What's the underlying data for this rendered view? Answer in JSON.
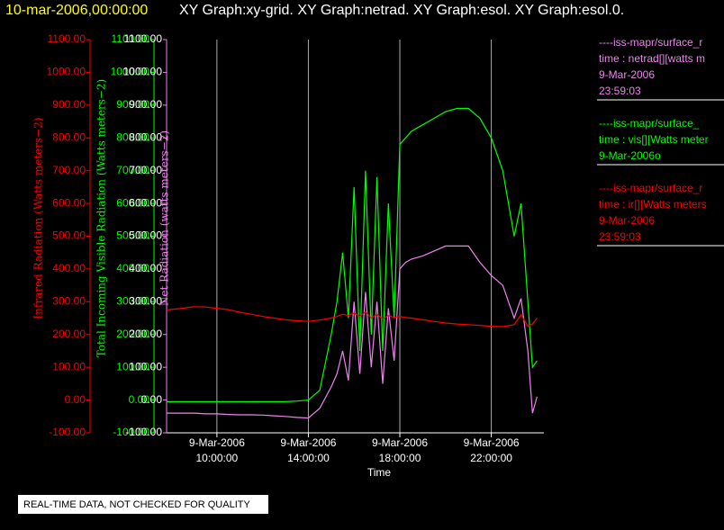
{
  "chart_data": {
    "type": "line",
    "header_time": "10-mar-2006,00:00:00",
    "title": "XY Graph:xy-grid.  XY Graph:netrad.  XY Graph:esol.  XY Graph:esol.0.",
    "xlabel": "Time",
    "footer": "REAL-TIME DATA, NOT CHECKED FOR QUALITY",
    "grid": true,
    "x": [
      7.8,
      8.5,
      9,
      9.5,
      10,
      10.5,
      11,
      11.5,
      12,
      12.5,
      13,
      13.5,
      14,
      14.5,
      15,
      15.25,
      15.5,
      15.75,
      16,
      16.25,
      16.5,
      16.75,
      17,
      17.25,
      17.5,
      17.75,
      18,
      18.25,
      18.5,
      19,
      19.5,
      20,
      20.5,
      21,
      21.5,
      22,
      22.5,
      23,
      23.3,
      23.6,
      23.8,
      24
    ],
    "xlim": [
      7.8,
      24.3
    ],
    "xticks": [
      {
        "value": 10,
        "label": "9-Mar-2006 10:00:00"
      },
      {
        "value": 14,
        "label": "9-Mar-2006 14:00:00"
      },
      {
        "value": 18,
        "label": "9-Mar-2006 18:00:00"
      },
      {
        "value": 22,
        "label": "9-Mar-2006 22:00:00"
      }
    ],
    "ylim": [
      -100,
      1100
    ],
    "yticks": [
      {
        "value": -100,
        "label": "-100.00"
      },
      {
        "value": 0,
        "label": "0.00"
      },
      {
        "value": 100,
        "label": "100.00"
      },
      {
        "value": 200,
        "label": "200.00"
      },
      {
        "value": 300,
        "label": "300.00"
      },
      {
        "value": 400,
        "label": "400.00"
      },
      {
        "value": 500,
        "label": "500.00"
      },
      {
        "value": 600,
        "label": "600.00"
      },
      {
        "value": 700,
        "label": "700.00"
      },
      {
        "value": 800,
        "label": "800.00"
      },
      {
        "value": 900,
        "label": "900.00"
      },
      {
        "value": 1000,
        "label": "1000.00"
      },
      {
        "value": 1100,
        "label": "1100.00"
      }
    ],
    "axes": [
      {
        "label": "Infrared Radiation (Watts meters−2)",
        "color": "#ff0000"
      },
      {
        "label": "Total Incoming Visible Radiation (Watts meters−2)",
        "color": "#00ff00"
      },
      {
        "label": "Net Radiation (watts meters−2)",
        "color": "#ee82ee",
        "tick_color": "#ffffff"
      }
    ],
    "series": [
      {
        "name": "----iss-mapr/surface_r",
        "color": "#ee82ee",
        "legend_lines": [
          "time : netrad[][watts m",
          "9-Mar-2006",
          "23:59:03"
        ],
        "values": [
          -40,
          -40,
          -40,
          -42,
          -42,
          -44,
          -45,
          -45,
          -46,
          -48,
          -50,
          -53,
          -55,
          -25,
          40,
          80,
          150,
          60,
          300,
          80,
          330,
          100,
          300,
          50,
          280,
          120,
          400,
          420,
          430,
          440,
          455,
          470,
          470,
          470,
          420,
          380,
          350,
          250,
          310,
          150,
          -40,
          10
        ]
      },
      {
        "name": "----iss-mapr/surface_",
        "color": "#00ff00",
        "legend_lines": [
          "time : vis[][Watts meter",
          "9-Mar-2006o"
        ],
        "values": [
          -5,
          -5,
          -5,
          -5,
          -5,
          -5,
          -5,
          -5,
          -5,
          -5,
          -5,
          -3,
          0,
          30,
          200,
          300,
          450,
          250,
          650,
          150,
          700,
          200,
          680,
          150,
          600,
          250,
          780,
          800,
          820,
          840,
          860,
          880,
          890,
          890,
          860,
          800,
          700,
          500,
          600,
          300,
          100,
          120
        ]
      },
      {
        "name": "----iss-mapr/surface_r",
        "color": "#ff0000",
        "legend_lines": [
          "time : ir[][Watts meters",
          "9-Mar-2006",
          "23:59:03"
        ],
        "values": [
          275,
          280,
          285,
          284,
          280,
          276,
          268,
          262,
          255,
          250,
          245,
          242,
          240,
          244,
          250,
          255,
          262,
          258,
          265,
          255,
          270,
          250,
          262,
          248,
          258,
          252,
          255,
          252,
          250,
          245,
          240,
          235,
          232,
          230,
          228,
          225,
          224,
          230,
          260,
          225,
          232,
          250
        ]
      }
    ]
  }
}
